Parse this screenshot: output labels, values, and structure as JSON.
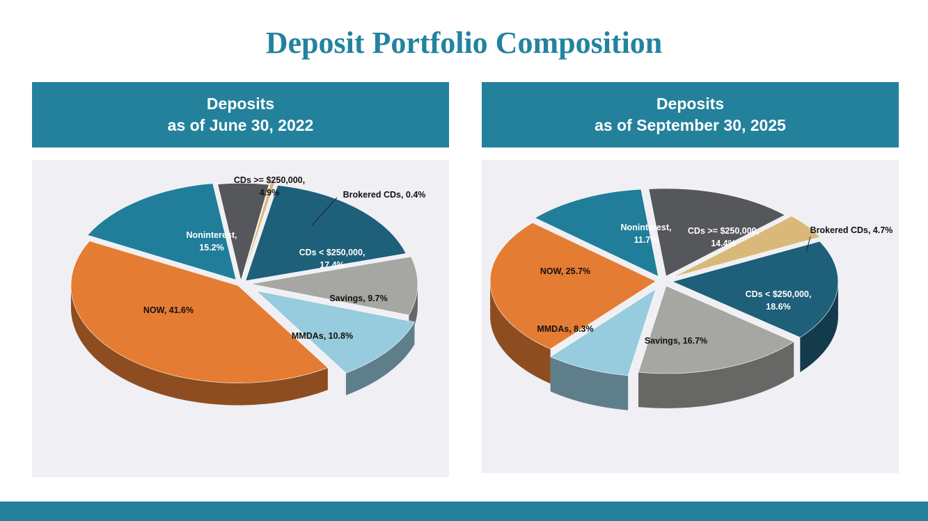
{
  "page_title": "Deposit Portfolio Composition",
  "panels": [
    {
      "header_line1": "Deposits",
      "header_line2": "as of June 30, 2022"
    },
    {
      "header_line1": "Deposits",
      "header_line2": "as of September 30, 2025"
    }
  ],
  "chart_data": [
    {
      "type": "pie",
      "title": "Deposits as of June 30, 2022",
      "slices": [
        {
          "label": "CDs >= $250,000,",
          "value": 4.9,
          "color": "#55575a"
        },
        {
          "label": "Brokered CDs,",
          "value": 0.4,
          "color": "#d9b97a"
        },
        {
          "label": "CDs < $250,000,",
          "value": 17.4,
          "color": "#1e5f7a"
        },
        {
          "label": "Savings,",
          "value": 9.7,
          "color": "#a6a7a3"
        },
        {
          "label": "MMDAs,",
          "value": 10.8,
          "color": "#97cbde"
        },
        {
          "label": "NOW,",
          "value": 41.6,
          "color": "#e57c33"
        },
        {
          "label": "Noninterest,",
          "value": 15.2,
          "color": "#217e9b"
        }
      ]
    },
    {
      "type": "pie",
      "title": "Deposits as of September 30, 2025",
      "slices": [
        {
          "label": "CDs >= $250,000,",
          "value": 14.4,
          "color": "#55575a"
        },
        {
          "label": "Brokered CDs,",
          "value": 4.7,
          "color": "#d9b97a"
        },
        {
          "label": "CDs < $250,000,",
          "value": 18.6,
          "color": "#1e5f7a"
        },
        {
          "label": "Savings,",
          "value": 16.7,
          "color": "#a6a7a3"
        },
        {
          "label": "MMDAs,",
          "value": 8.3,
          "color": "#97cbde"
        },
        {
          "label": "NOW,",
          "value": 25.7,
          "color": "#e57c33"
        },
        {
          "label": "Noninterest,",
          "value": 11.7,
          "color": "#217e9b"
        }
      ]
    }
  ]
}
